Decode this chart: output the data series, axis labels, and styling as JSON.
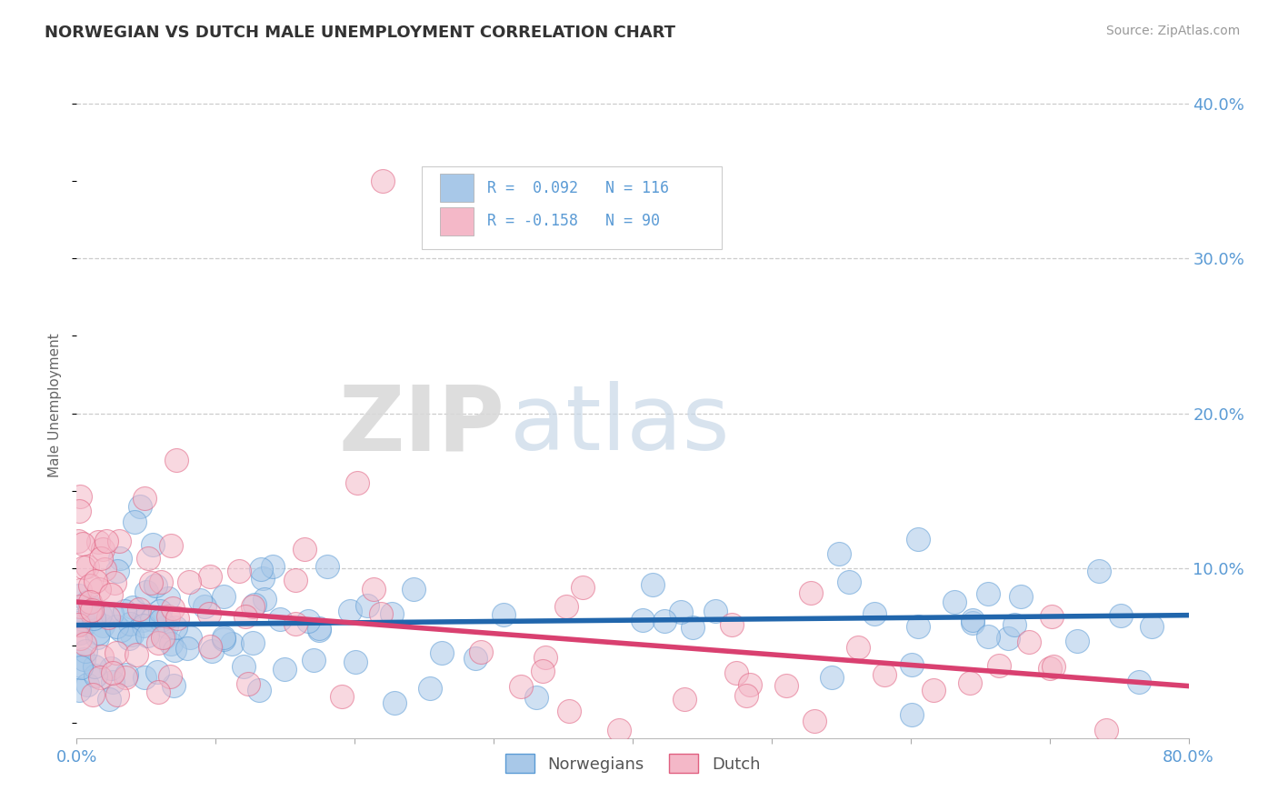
{
  "title": "NORWEGIAN VS DUTCH MALE UNEMPLOYMENT CORRELATION CHART",
  "source": "Source: ZipAtlas.com",
  "ylabel": "Male Unemployment",
  "xlim": [
    0.0,
    0.8
  ],
  "ylim": [
    -0.01,
    0.42
  ],
  "xticks": [
    0.0,
    0.1,
    0.2,
    0.3,
    0.4,
    0.5,
    0.6,
    0.7,
    0.8
  ],
  "yticks_right": [
    0.1,
    0.2,
    0.3,
    0.4
  ],
  "ytick_labels_right": [
    "10.0%",
    "20.0%",
    "30.0%",
    "40.0%"
  ],
  "blue_color": "#a8c8e8",
  "blue_edge_color": "#5b9bd5",
  "pink_color": "#f4b8c8",
  "pink_edge_color": "#e06080",
  "blue_line_color": "#2166ac",
  "pink_line_color": "#d94070",
  "legend_r_blue": "R =  0.092",
  "legend_n_blue": "N = 116",
  "legend_r_pink": "R = -0.158",
  "legend_n_pink": "N = 90",
  "legend_label_blue": "Norwegians",
  "legend_label_pink": "Dutch",
  "watermark_zip": "ZIP",
  "watermark_atlas": "atlas",
  "background_color": "#ffffff",
  "grid_color": "#cccccc",
  "title_color": "#333333",
  "axis_tick_color": "#5b9bd5",
  "ylabel_color": "#666666",
  "blue_intercept": 0.063,
  "blue_slope": 0.008,
  "pink_intercept": 0.078,
  "pink_slope": -0.068
}
